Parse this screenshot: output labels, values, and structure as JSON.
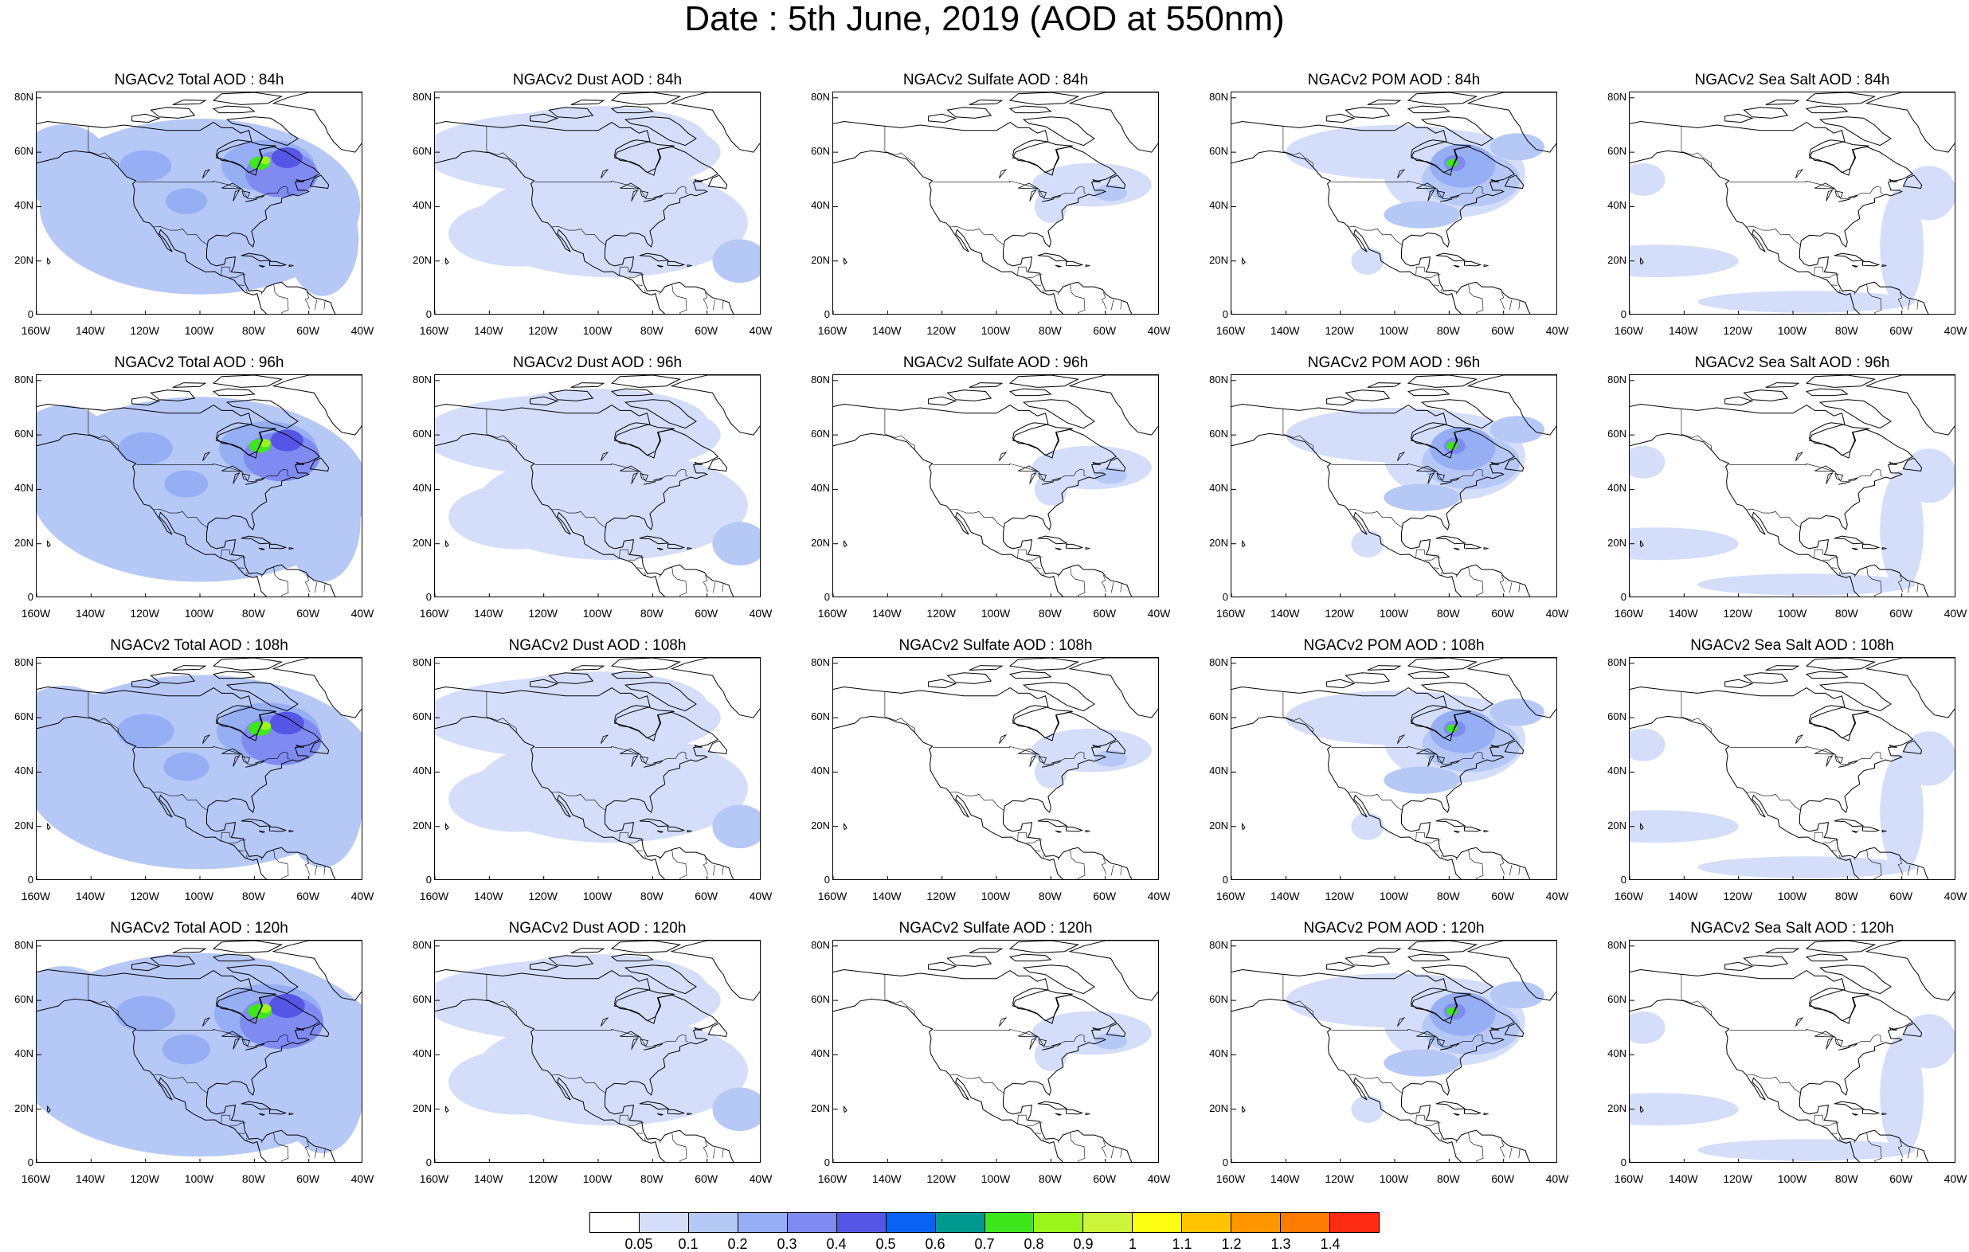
{
  "title": "Date : 5th June, 2019 (AOD at 550nm)",
  "axes": {
    "lat_ticks": [
      "80N",
      "60N",
      "40N",
      "20N",
      "0"
    ],
    "lon_ticks": [
      "160W",
      "140W",
      "120W",
      "100W",
      "80W",
      "60W",
      "40W"
    ],
    "lat_range": [
      0,
      82
    ],
    "lon_range": [
      -160,
      -40
    ]
  },
  "colorbar": {
    "labels": [
      "0.05",
      "0.1",
      "0.2",
      "0.3",
      "0.4",
      "0.5",
      "0.6",
      "0.7",
      "0.8",
      "0.9",
      "1",
      "1.1",
      "1.2",
      "1.3",
      "1.4"
    ],
    "colors": [
      "#ffffff",
      "#d4defa",
      "#b6c8f6",
      "#96aef4",
      "#7f8bf1",
      "#5656e6",
      "#0a62f2",
      "#00998f",
      "#3ee61c",
      "#99f51c",
      "#cdf53c",
      "#ffff14",
      "#ffc300",
      "#ff9600",
      "#ff7a00",
      "#ff2b14"
    ]
  },
  "panels": [
    [
      {
        "title": "NGACv2 Total AOD : 84h",
        "species": "total",
        "hour": 84
      },
      {
        "title": "NGACv2 Dust AOD : 84h",
        "species": "dust",
        "hour": 84
      },
      {
        "title": "NGACv2 Sulfate AOD : 84h",
        "species": "sulfate",
        "hour": 84
      },
      {
        "title": "NGACv2 POM AOD : 84h",
        "species": "pom",
        "hour": 84
      },
      {
        "title": "NGACv2 Sea Salt AOD : 84h",
        "species": "seasalt",
        "hour": 84
      }
    ],
    [
      {
        "title": "NGACv2 Total AOD : 96h",
        "species": "total",
        "hour": 96
      },
      {
        "title": "NGACv2 Dust AOD : 96h",
        "species": "dust",
        "hour": 96
      },
      {
        "title": "NGACv2 Sulfate AOD : 96h",
        "species": "sulfate",
        "hour": 96
      },
      {
        "title": "NGACv2 POM AOD : 96h",
        "species": "pom",
        "hour": 96
      },
      {
        "title": "NGACv2 Sea Salt AOD : 96h",
        "species": "seasalt",
        "hour": 96
      }
    ],
    [
      {
        "title": "NGACv2 Total AOD : 108h",
        "species": "total",
        "hour": 108
      },
      {
        "title": "NGACv2 Dust AOD : 108h",
        "species": "dust",
        "hour": 108
      },
      {
        "title": "NGACv2 Sulfate AOD : 108h",
        "species": "sulfate",
        "hour": 108
      },
      {
        "title": "NGACv2 POM AOD : 108h",
        "species": "pom",
        "hour": 108
      },
      {
        "title": "NGACv2 Sea Salt AOD : 108h",
        "species": "seasalt",
        "hour": 108
      }
    ],
    [
      {
        "title": "NGACv2 Total AOD : 120h",
        "species": "total",
        "hour": 120
      },
      {
        "title": "NGACv2 Dust AOD : 120h",
        "species": "dust",
        "hour": 120
      },
      {
        "title": "NGACv2 Sulfate AOD : 120h",
        "species": "sulfate",
        "hour": 120
      },
      {
        "title": "NGACv2 POM AOD : 120h",
        "species": "pom",
        "hour": 120
      },
      {
        "title": "NGACv2 Sea Salt  AOD : 120h",
        "species": "seasalt",
        "hour": 120
      }
    ]
  ]
}
